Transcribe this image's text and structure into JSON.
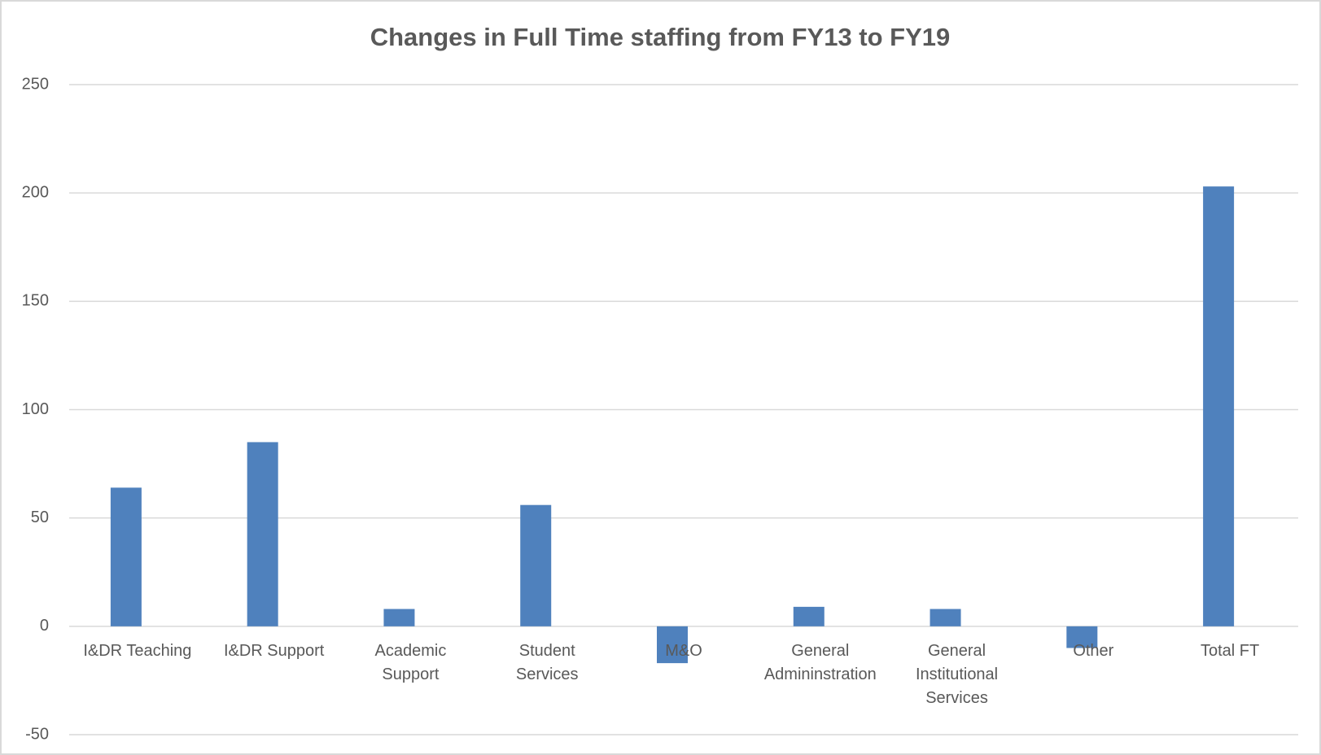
{
  "chart_data": {
    "type": "bar",
    "title": "Changes in Full Time staffing from FY13 to FY19",
    "categories": [
      "I&DR Teaching",
      "I&DR Support",
      "Academic Support",
      "Student Services",
      "M&O",
      "General Admininstration",
      "General Institutional Services",
      "Other",
      "Total FT"
    ],
    "values": [
      64,
      85,
      8,
      56,
      -17,
      9,
      8,
      -10,
      203
    ],
    "color": "#4f81bd",
    "ylim": [
      -50,
      250
    ],
    "yticks": [
      -50,
      0,
      50,
      100,
      150,
      200,
      250
    ],
    "grid": true
  }
}
